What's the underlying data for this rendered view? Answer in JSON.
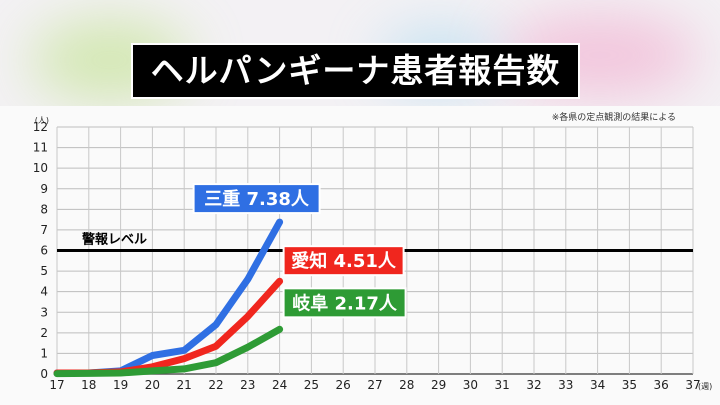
{
  "title": "ヘルパンギーナ患者報告数",
  "note": "※各県の定点観測の結果による",
  "colors": {
    "mie": "#2f6fe3",
    "aichi": "#f0261e",
    "gifu": "#2e9b35",
    "alarm": "#000000"
  },
  "chart_data": {
    "type": "line",
    "title": "ヘルパンギーナ患者報告数",
    "y_unit": "(人)",
    "x_unit": "(週)",
    "ylim": [
      0,
      12
    ],
    "yticks": [
      0,
      1,
      2,
      3,
      4,
      5,
      6,
      7,
      8,
      9,
      10,
      11,
      12
    ],
    "xticks": [
      17,
      18,
      19,
      20,
      21,
      22,
      23,
      24,
      25,
      26,
      27,
      28,
      29,
      30,
      31,
      32,
      33,
      34,
      35,
      36,
      37
    ],
    "grid": true,
    "alarm_line": {
      "label": "警報レベル",
      "value": 6
    },
    "series": [
      {
        "name": "三重",
        "label": "三重 7.38人",
        "color": "#2f6fe3",
        "x": [
          17,
          18,
          19,
          20,
          21,
          22,
          23,
          24
        ],
        "y": [
          0.05,
          0.05,
          0.15,
          0.9,
          1.15,
          2.4,
          4.6,
          7.38
        ]
      },
      {
        "name": "愛知",
        "label": "愛知 4.51人",
        "color": "#f0261e",
        "x": [
          17,
          18,
          19,
          20,
          21,
          22,
          23,
          24
        ],
        "y": [
          0.05,
          0.05,
          0.1,
          0.35,
          0.75,
          1.35,
          2.8,
          4.51
        ]
      },
      {
        "name": "岐阜",
        "label": "岐阜 2.17人",
        "color": "#2e9b35",
        "x": [
          17,
          18,
          19,
          20,
          21,
          22,
          23,
          24
        ],
        "y": [
          0.02,
          0.03,
          0.05,
          0.15,
          0.25,
          0.55,
          1.3,
          2.17
        ]
      }
    ]
  }
}
